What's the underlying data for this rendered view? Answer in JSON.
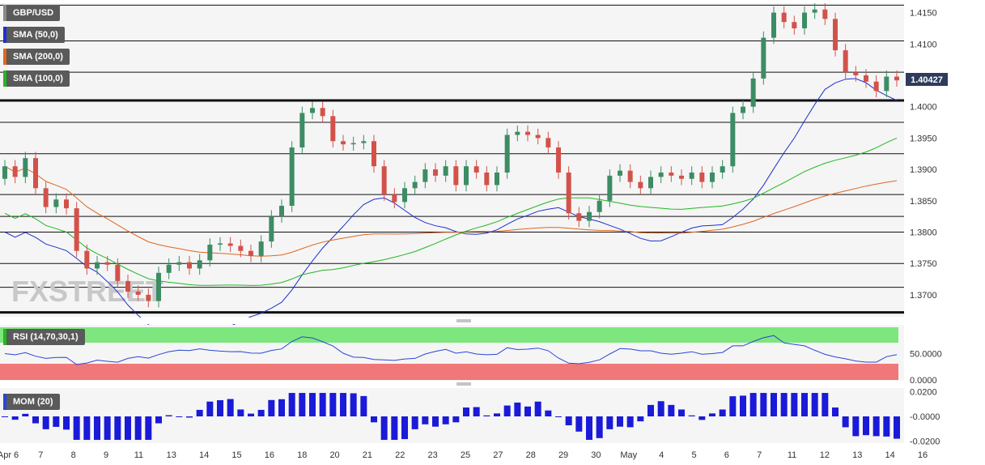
{
  "symbol": "GBP/USD",
  "indicators": [
    {
      "label": "SMA (50,0)",
      "color": "#1f2fd0"
    },
    {
      "label": "SMA (200,0)",
      "color": "#e0661e"
    },
    {
      "label": "SMA (100,0)",
      "color": "#20b820"
    }
  ],
  "current_price_label": "1.40427",
  "watermark": "FXSTREET",
  "rsi_label": "RSI (14,70,30,1)",
  "mom_label": "MOM (20)",
  "chart_data": [
    {
      "type": "candlestick",
      "title": "GBP/USD",
      "ylim": [
        1.3665,
        1.4165
      ],
      "y_ticks": [
        "1.4150",
        "1.4100",
        "1.4000",
        "1.3950",
        "1.3900",
        "1.3850",
        "1.3800",
        "1.3750",
        "1.3700"
      ],
      "x_labels": [
        "Apr 6",
        "7",
        "8",
        "9",
        "11",
        "13",
        "14",
        "15",
        "16",
        "18",
        "20",
        "21",
        "22",
        "23",
        "25",
        "27",
        "28",
        "29",
        "30",
        "May",
        "4",
        "5",
        "6",
        "7",
        "11",
        "12",
        "13",
        "14",
        "16"
      ],
      "horizontal_levels": [
        1.4162,
        1.4105,
        1.4055,
        1.401,
        1.3975,
        1.3925,
        1.386,
        1.3825,
        1.38,
        1.375,
        1.3712,
        1.3672
      ],
      "bold_levels": [
        1.401,
        1.3672
      ],
      "close_series": [
        1.3905,
        1.3888,
        1.3918,
        1.387,
        1.384,
        1.3852,
        1.3838,
        1.377,
        1.3742,
        1.3752,
        1.3748,
        1.3722,
        1.3705,
        1.37,
        1.369,
        1.3735,
        1.3748,
        1.3752,
        1.3742,
        1.3755,
        1.378,
        1.3782,
        1.3778,
        1.377,
        1.3762,
        1.3785,
        1.3825,
        1.3842,
        1.3935,
        1.399,
        1.3998,
        1.3985,
        1.3945,
        1.394,
        1.3942,
        1.3945,
        1.3905,
        1.386,
        1.3848,
        1.387,
        1.388,
        1.39,
        1.389,
        1.3905,
        1.3875,
        1.3905,
        1.3895,
        1.3875,
        1.3895,
        1.3955,
        1.396,
        1.3955,
        1.395,
        1.3935,
        1.3895,
        1.383,
        1.3818,
        1.3832,
        1.385,
        1.389,
        1.3898,
        1.388,
        1.387,
        1.3888,
        1.3895,
        1.389,
        1.3885,
        1.3895,
        1.388,
        1.3895,
        1.3905,
        1.399,
        1.4,
        1.4045,
        1.411,
        1.415,
        1.4135,
        1.4125,
        1.415,
        1.4155,
        1.414,
        1.409,
        1.4055,
        1.405,
        1.404,
        1.4025,
        1.4048,
        1.4042
      ],
      "series": [
        {
          "name": "SMA (50,0)",
          "start": 1.38,
          "end": 1.401
        },
        {
          "name": "SMA (200,0)",
          "start": 1.3905,
          "end": 1.3882
        },
        {
          "name": "SMA (100,0)",
          "start": 1.383,
          "end": 1.395
        }
      ]
    },
    {
      "type": "line",
      "title": "RSI (14,70,30,1)",
      "ylim": [
        0,
        100
      ],
      "y_ticks": [
        "50.0000",
        "0.0000"
      ],
      "overbought": 70,
      "oversold": 30
    },
    {
      "type": "bar",
      "title": "MOM (20)",
      "ylim": [
        -0.021,
        0.021
      ],
      "y_ticks": [
        "0.0200",
        "-0.0000",
        "-0.0200"
      ]
    }
  ]
}
